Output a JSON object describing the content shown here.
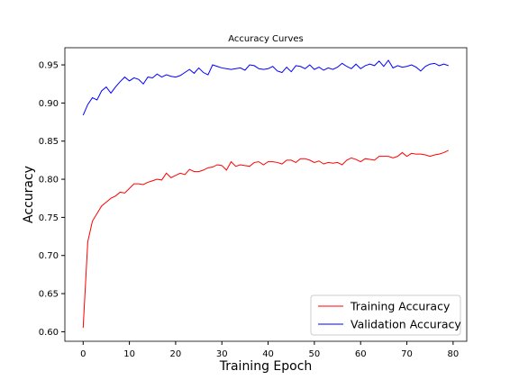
{
  "chart_data": {
    "type": "line",
    "title": "Accuracy Curves",
    "x_label": "Training Epoch",
    "y_label": "Accuracy",
    "x": [
      0,
      1,
      2,
      3,
      4,
      5,
      6,
      7,
      8,
      9,
      10,
      11,
      12,
      13,
      14,
      15,
      16,
      17,
      18,
      19,
      20,
      21,
      22,
      23,
      24,
      25,
      26,
      27,
      28,
      29,
      30,
      31,
      32,
      33,
      34,
      35,
      36,
      37,
      38,
      39,
      40,
      41,
      42,
      43,
      44,
      45,
      46,
      47,
      48,
      49,
      50,
      51,
      52,
      53,
      54,
      55,
      56,
      57,
      58,
      59,
      60,
      61,
      62,
      63,
      64,
      65,
      66,
      67,
      68,
      69,
      70,
      71,
      72,
      73,
      74,
      75,
      76,
      77,
      78,
      79
    ],
    "series": [
      {
        "name": "Training Accuracy",
        "color": "#ff0000",
        "values": [
          0.605,
          0.718,
          0.745,
          0.755,
          0.765,
          0.77,
          0.775,
          0.778,
          0.783,
          0.782,
          0.788,
          0.794,
          0.794,
          0.793,
          0.796,
          0.798,
          0.8,
          0.799,
          0.808,
          0.802,
          0.805,
          0.808,
          0.806,
          0.813,
          0.81,
          0.81,
          0.812,
          0.815,
          0.816,
          0.819,
          0.818,
          0.812,
          0.823,
          0.817,
          0.819,
          0.818,
          0.817,
          0.822,
          0.823,
          0.819,
          0.823,
          0.823,
          0.822,
          0.82,
          0.825,
          0.825,
          0.822,
          0.827,
          0.827,
          0.825,
          0.822,
          0.824,
          0.82,
          0.822,
          0.821,
          0.822,
          0.819,
          0.825,
          0.828,
          0.826,
          0.823,
          0.827,
          0.826,
          0.825,
          0.83,
          0.83,
          0.83,
          0.828,
          0.83,
          0.835,
          0.83,
          0.834,
          0.833,
          0.833,
          0.832,
          0.83,
          0.832,
          0.833,
          0.835,
          0.838
        ]
      },
      {
        "name": "Validation Accuracy",
        "color": "#0000ff",
        "values": [
          0.884,
          0.898,
          0.907,
          0.904,
          0.916,
          0.921,
          0.913,
          0.921,
          0.928,
          0.934,
          0.929,
          0.933,
          0.931,
          0.925,
          0.934,
          0.933,
          0.938,
          0.934,
          0.937,
          0.935,
          0.934,
          0.936,
          0.94,
          0.944,
          0.939,
          0.946,
          0.94,
          0.937,
          0.95,
          0.948,
          0.946,
          0.945,
          0.944,
          0.945,
          0.946,
          0.943,
          0.95,
          0.949,
          0.945,
          0.944,
          0.945,
          0.948,
          0.942,
          0.94,
          0.947,
          0.941,
          0.949,
          0.948,
          0.945,
          0.95,
          0.944,
          0.947,
          0.943,
          0.946,
          0.944,
          0.947,
          0.952,
          0.948,
          0.945,
          0.951,
          0.945,
          0.949,
          0.951,
          0.949,
          0.955,
          0.948,
          0.956,
          0.946,
          0.949,
          0.947,
          0.948,
          0.95,
          0.947,
          0.942,
          0.948,
          0.951,
          0.952,
          0.949,
          0.951,
          0.949
        ]
      }
    ],
    "xlim": [
      -3.95,
      82.95
    ],
    "ylim": [
      0.5875,
      0.9725
    ],
    "xticks": [
      0,
      10,
      20,
      30,
      40,
      50,
      60,
      70,
      80
    ],
    "yticks": [
      {
        "value": 0.6,
        "label": "0.60"
      },
      {
        "value": 0.65,
        "label": "0.65"
      },
      {
        "value": 0.7,
        "label": "0.70"
      },
      {
        "value": 0.75,
        "label": "0.75"
      },
      {
        "value": 0.8,
        "label": "0.80"
      },
      {
        "value": 0.85,
        "label": "0.85"
      },
      {
        "value": 0.9,
        "label": "0.90"
      },
      {
        "value": 0.95,
        "label": "0.95"
      }
    ],
    "grid": false,
    "legend": "lower right"
  }
}
